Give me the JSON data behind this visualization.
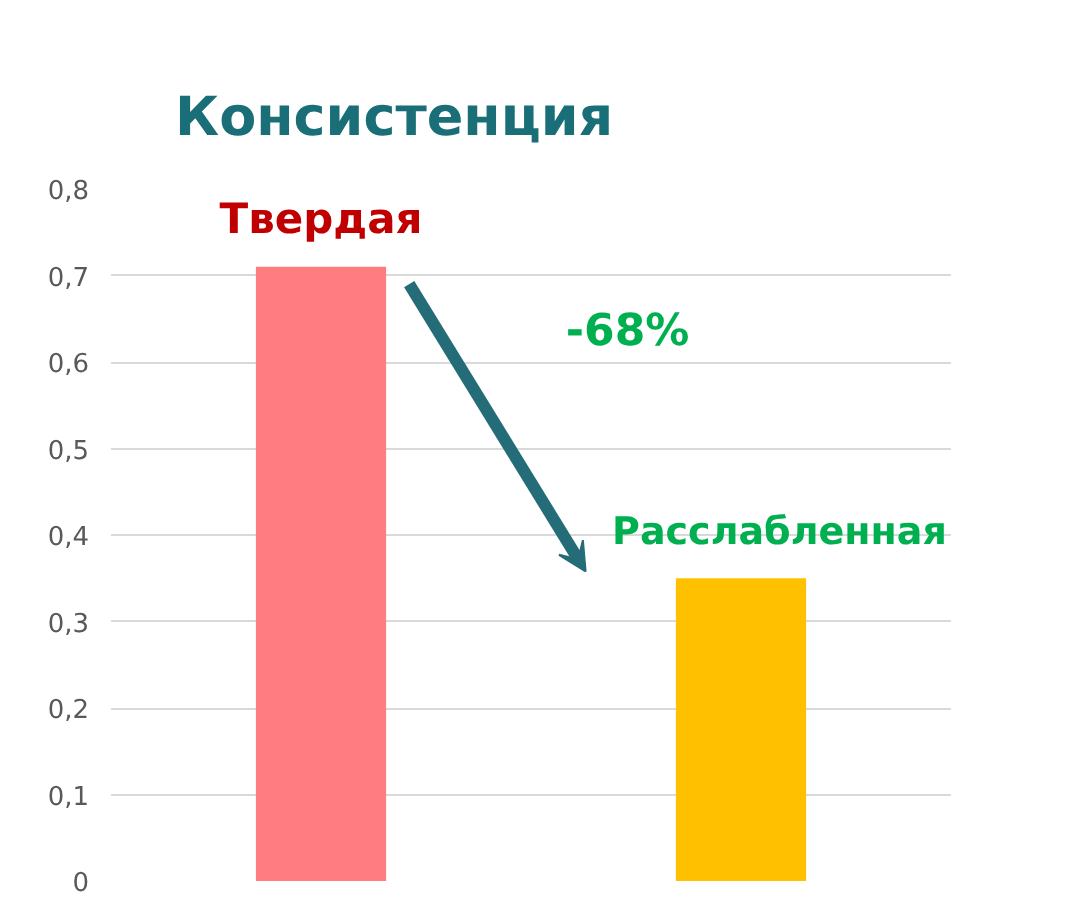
{
  "chart_data": {
    "type": "bar",
    "title": "Консистенция",
    "categories": [
      "Твердая",
      "Расслабленная"
    ],
    "values": [
      0.71,
      0.35
    ],
    "colors": [
      "#ff7c80",
      "#ffc000"
    ],
    "ylim": [
      0,
      0.8
    ],
    "yticks": [
      {
        "value": 0,
        "label": "0"
      },
      {
        "value": 0.1,
        "label": "0,1"
      },
      {
        "value": 0.2,
        "label": "0,2"
      },
      {
        "value": 0.3,
        "label": "0,3"
      },
      {
        "value": 0.4,
        "label": "0,4"
      },
      {
        "value": 0.5,
        "label": "0,5"
      },
      {
        "value": 0.6,
        "label": "0,6"
      },
      {
        "value": 0.7,
        "label": "0,7"
      },
      {
        "value": 0.8,
        "label": "0,8"
      }
    ],
    "grid": "y",
    "annotations": [
      "-68%"
    ]
  }
}
